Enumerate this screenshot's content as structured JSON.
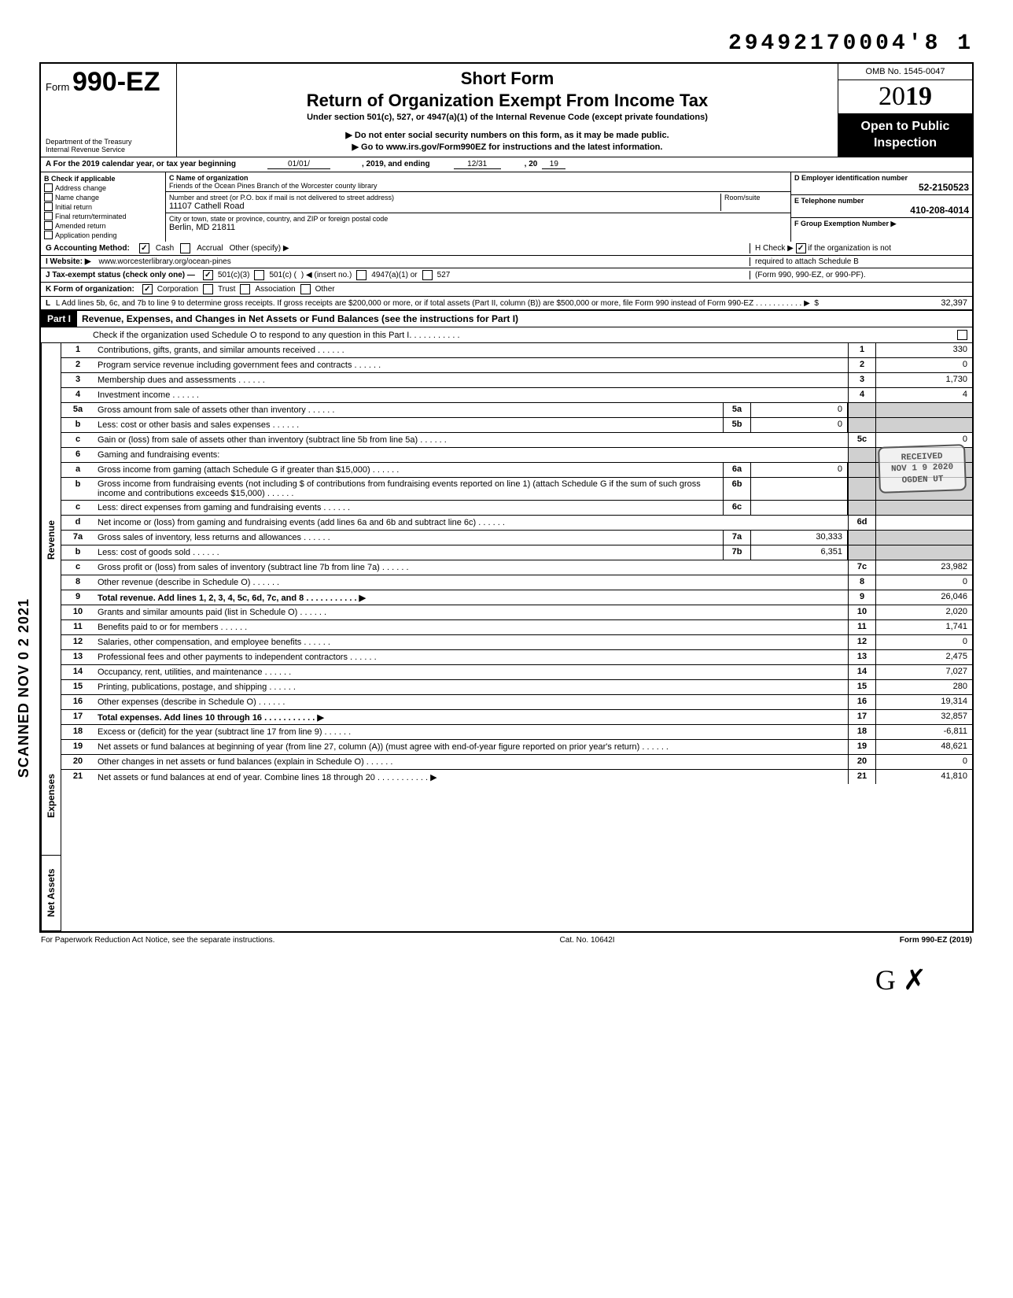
{
  "top_id": "29492170004'8 1",
  "header": {
    "form_prefix": "Form",
    "form_number": "990-EZ",
    "dept1": "Department of the Treasury",
    "dept2": "Internal Revenue Service",
    "short_form": "Short Form",
    "return_title": "Return of Organization Exempt From Income Tax",
    "under": "Under section 501(c), 527, or 4947(a)(1) of the Internal Revenue Code (except private foundations)",
    "note1": "▶ Do not enter social security numbers on this form, as it may be made public.",
    "note2": "▶ Go to www.irs.gov/Form990EZ for instructions and the latest information.",
    "omb": "OMB No. 1545-0047",
    "year_prefix": "20",
    "year_suffix": "19",
    "open_public": "Open to Public Inspection"
  },
  "row_a": {
    "label": "A For the 2019 calendar year, or tax year beginning",
    "begin": "01/01/",
    "mid": ", 2019, and ending",
    "end_mo": "12/31",
    "end_yr_label": ", 20",
    "end_yr": "19"
  },
  "col_b": {
    "title": "B Check if applicable",
    "items": [
      "Address change",
      "Name change",
      "Initial return",
      "Final return/terminated",
      "Amended return",
      "Application pending"
    ]
  },
  "col_c": {
    "c_label": "C Name of organization",
    "name": "Friends of the Ocean Pines Branch of the Worcester county library",
    "street_label": "Number and street (or P.O. box if mail is not delivered to street address)",
    "room_label": "Room/suite",
    "street": "11107 Cathell Road",
    "city_label": "City or town, state or province, country, and ZIP or foreign postal code",
    "city": "Berlin, MD 21811"
  },
  "col_de": {
    "d_label": "D Employer identification number",
    "ein": "52-2150523",
    "e_label": "E Telephone number",
    "phone": "410-208-4014",
    "f_label": "F Group Exemption Number ▶"
  },
  "info": {
    "g_label": "G Accounting Method:",
    "g_cash": "Cash",
    "g_accrual": "Accrual",
    "g_other": "Other (specify) ▶",
    "i_label": "I Website: ▶",
    "website": "www.worcesterlibrary.org/ocean-pines",
    "j_label": "J Tax-exempt status (check only one) —",
    "j_501c3": "501(c)(3)",
    "j_501c": "501(c) (",
    "j_insert": ") ◀ (insert no.)",
    "j_4947": "4947(a)(1) or",
    "j_527": "527",
    "k_label": "K Form of organization:",
    "k_corp": "Corporation",
    "k_trust": "Trust",
    "k_assoc": "Association",
    "k_other": "Other",
    "h_text1": "H Check ▶",
    "h_text2": "if the organization is not",
    "h_text3": "required to attach Schedule B",
    "h_text4": "(Form 990, 990-EZ, or 990-PF).",
    "l_text": "L Add lines 5b, 6c, and 7b to line 9 to determine gross receipts. If gross receipts are $200,000 or more, or if total assets (Part II, column (B)) are $500,000 or more, file Form 990 instead of Form 990-EZ",
    "l_val": "32,397"
  },
  "part1": {
    "label": "Part I",
    "title": "Revenue, Expenses, and Changes in Net Assets or Fund Balances (see the instructions for Part I)",
    "check": "Check if the organization used Schedule O to respond to any question in this Part I"
  },
  "side_labels": {
    "revenue": "Revenue",
    "expenses": "Expenses",
    "netassets": "Net Assets"
  },
  "lines": [
    {
      "n": "1",
      "t": "Contributions, gifts, grants, and similar amounts received",
      "box": "1",
      "v": "330"
    },
    {
      "n": "2",
      "t": "Program service revenue including government fees and contracts",
      "box": "2",
      "v": "0"
    },
    {
      "n": "3",
      "t": "Membership dues and assessments",
      "box": "3",
      "v": "1,730"
    },
    {
      "n": "4",
      "t": "Investment income",
      "box": "4",
      "v": "4"
    },
    {
      "n": "5a",
      "t": "Gross amount from sale of assets other than inventory",
      "mini": "5a",
      "miniv": "0"
    },
    {
      "n": "b",
      "t": "Less: cost or other basis and sales expenses",
      "mini": "5b",
      "miniv": "0"
    },
    {
      "n": "c",
      "t": "Gain or (loss) from sale of assets other than inventory (subtract line 5b from line 5a)",
      "box": "5c",
      "v": "0"
    },
    {
      "n": "6",
      "t": "Gaming and fundraising events:"
    },
    {
      "n": "a",
      "t": "Gross income from gaming (attach Schedule G if greater than $15,000)",
      "mini": "6a",
      "miniv": "0"
    },
    {
      "n": "b",
      "t": "Gross income from fundraising events (not including  $                    of contributions from fundraising events reported on line 1) (attach Schedule G if the sum of such gross income and contributions exceeds $15,000)",
      "mini": "6b",
      "miniv": ""
    },
    {
      "n": "c",
      "t": "Less: direct expenses from gaming and fundraising events",
      "mini": "6c",
      "miniv": ""
    },
    {
      "n": "d",
      "t": "Net income or (loss) from gaming and fundraising events (add lines 6a and 6b and subtract line 6c)",
      "box": "6d",
      "v": ""
    },
    {
      "n": "7a",
      "t": "Gross sales of inventory, less returns and allowances",
      "mini": "7a",
      "miniv": "30,333"
    },
    {
      "n": "b",
      "t": "Less: cost of goods sold",
      "mini": "7b",
      "miniv": "6,351"
    },
    {
      "n": "c",
      "t": "Gross profit or (loss) from sales of inventory (subtract line 7b from line 7a)",
      "box": "7c",
      "v": "23,982"
    },
    {
      "n": "8",
      "t": "Other revenue (describe in Schedule O)",
      "box": "8",
      "v": "0"
    },
    {
      "n": "9",
      "t": "Total revenue. Add lines 1, 2, 3, 4, 5c, 6d, 7c, and 8",
      "box": "9",
      "v": "26,046",
      "bold": true,
      "arrow": true
    },
    {
      "n": "10",
      "t": "Grants and similar amounts paid (list in Schedule O)",
      "box": "10",
      "v": "2,020"
    },
    {
      "n": "11",
      "t": "Benefits paid to or for members",
      "box": "11",
      "v": "1,741"
    },
    {
      "n": "12",
      "t": "Salaries, other compensation, and employee benefits",
      "box": "12",
      "v": "0"
    },
    {
      "n": "13",
      "t": "Professional fees and other payments to independent contractors",
      "box": "13",
      "v": "2,475"
    },
    {
      "n": "14",
      "t": "Occupancy, rent, utilities, and maintenance",
      "box": "14",
      "v": "7,027"
    },
    {
      "n": "15",
      "t": "Printing, publications, postage, and shipping",
      "box": "15",
      "v": "280"
    },
    {
      "n": "16",
      "t": "Other expenses (describe in Schedule O)",
      "box": "16",
      "v": "19,314"
    },
    {
      "n": "17",
      "t": "Total expenses. Add lines 10 through 16",
      "box": "17",
      "v": "32,857",
      "bold": true,
      "arrow": true
    },
    {
      "n": "18",
      "t": "Excess or (deficit) for the year (subtract line 17 from line 9)",
      "box": "18",
      "v": "-6,811"
    },
    {
      "n": "19",
      "t": "Net assets or fund balances at beginning of year (from line 27, column (A)) (must agree with end-of-year figure reported on prior year's return)",
      "box": "19",
      "v": "48,621"
    },
    {
      "n": "20",
      "t": "Other changes in net assets or fund balances (explain in Schedule O)",
      "box": "20",
      "v": "0"
    },
    {
      "n": "21",
      "t": "Net assets or fund balances at end of year. Combine lines 18 through 20",
      "box": "21",
      "v": "41,810",
      "arrow": true
    }
  ],
  "footer": {
    "left": "For Paperwork Reduction Act Notice, see the separate instructions.",
    "mid": "Cat. No. 10642I",
    "right": "Form 990-EZ (2019)"
  },
  "stamps": {
    "received": "RECEIVED",
    "date": "NOV 1 9 2020",
    "ogden": "OGDEN UT",
    "scanned": "SCANNED NOV 0 2 2021"
  },
  "signature": "G ✗",
  "colors": {
    "black": "#000000",
    "grey": "#d0d0d0",
    "stamp": "#555555"
  }
}
